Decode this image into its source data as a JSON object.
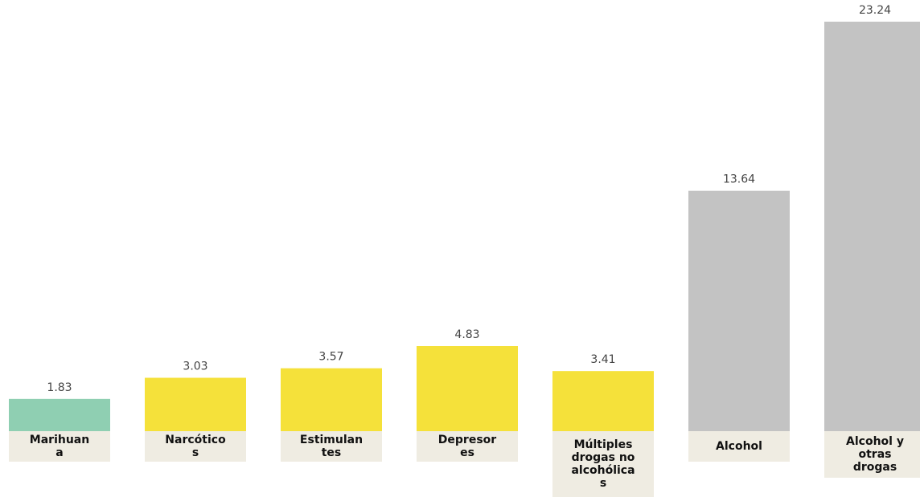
{
  "chart_data": {
    "type": "bar",
    "categories": [
      "Marihuan\na",
      "Narcótico\ns",
      "Estimulan\ntes",
      "Depresor\nes",
      "Múltiples\ndrogas no\nalcohólica\ns",
      "Alcohol",
      "Alcohol y\notras\ndrogas"
    ],
    "values": [
      1.83,
      3.03,
      3.57,
      4.83,
      3.41,
      13.64,
      23.24
    ],
    "value_labels": [
      "1.83",
      "3.03",
      "3.57",
      "4.83",
      "3.41",
      "13.64",
      "23.24"
    ],
    "colors": [
      "#8fcfb2",
      "#f5e13a",
      "#f5e13a",
      "#f5e13a",
      "#f5e13a",
      "#c3c3c3",
      "#c3c3c3"
    ],
    "ylim": [
      0,
      23.24
    ],
    "grid": false,
    "legend": "none"
  }
}
